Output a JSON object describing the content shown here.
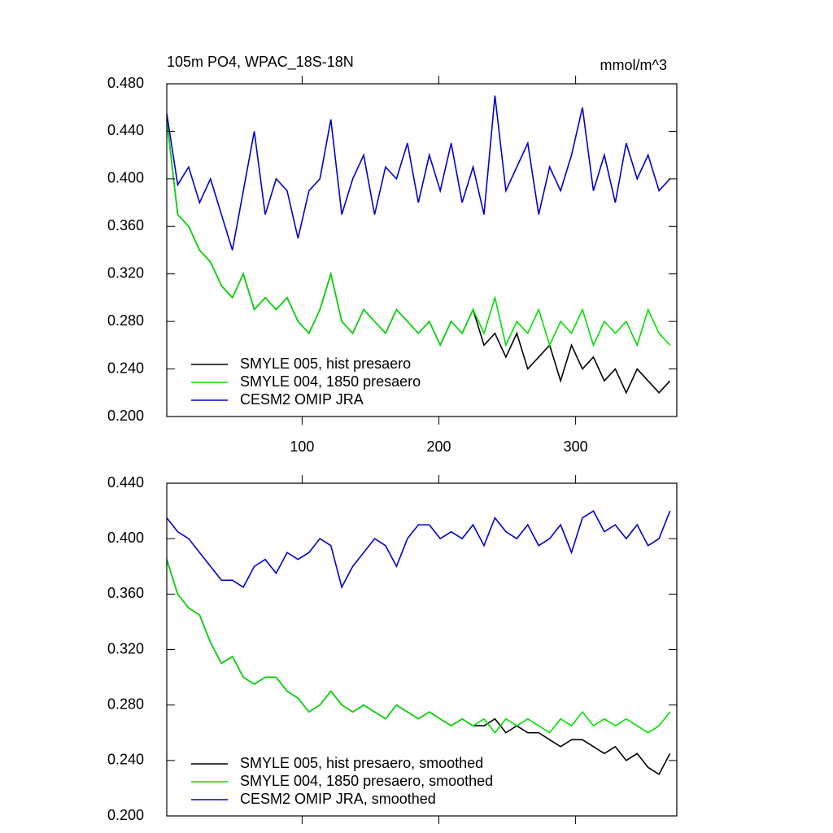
{
  "chart_data": [
    {
      "type": "line",
      "title": "105m PO4, WPAC_18S-18N",
      "units": "mmol/m^3",
      "x": [
        1,
        9,
        17,
        25,
        33,
        41,
        49,
        57,
        65,
        73,
        81,
        89,
        97,
        105,
        113,
        121,
        129,
        137,
        145,
        153,
        161,
        169,
        177,
        185,
        193,
        201,
        209,
        217,
        225,
        233,
        241,
        249,
        257,
        265,
        273,
        281,
        289,
        297,
        305,
        313,
        321,
        329,
        337,
        345,
        353,
        361,
        369
      ],
      "xlim": [
        1,
        374
      ],
      "xticks": [
        100,
        200,
        300
      ],
      "ylim": [
        0.2,
        0.48
      ],
      "yticks": [
        {
          "value": 0.2,
          "label": "0.200"
        },
        {
          "value": 0.24,
          "label": "0.240"
        },
        {
          "value": 0.28,
          "label": "0.280"
        },
        {
          "value": 0.32,
          "label": "0.320"
        },
        {
          "value": 0.36,
          "label": "0.360"
        },
        {
          "value": 0.4,
          "label": "0.400"
        },
        {
          "value": 0.44,
          "label": "0.440"
        },
        {
          "value": 0.48,
          "label": "0.480"
        }
      ],
      "legend": "lower left",
      "series": [
        {
          "name": "SMYLE 005, hist presaero",
          "color": "#000000",
          "values": [
            0.45,
            0.37,
            0.36,
            0.34,
            0.33,
            0.31,
            0.3,
            0.32,
            0.29,
            0.3,
            0.29,
            0.3,
            0.28,
            0.27,
            0.29,
            0.32,
            0.28,
            0.27,
            0.29,
            0.28,
            0.27,
            0.29,
            0.28,
            0.27,
            0.28,
            0.26,
            0.28,
            0.27,
            0.29,
            0.26,
            0.27,
            0.25,
            0.27,
            0.24,
            0.25,
            0.26,
            0.23,
            0.26,
            0.24,
            0.25,
            0.23,
            0.24,
            0.22,
            0.24,
            0.23,
            0.22,
            0.23
          ]
        },
        {
          "name": "SMYLE 004, 1850 presaero",
          "color": "#00e000",
          "values": [
            0.45,
            0.37,
            0.36,
            0.34,
            0.33,
            0.31,
            0.3,
            0.32,
            0.29,
            0.3,
            0.29,
            0.3,
            0.28,
            0.27,
            0.29,
            0.32,
            0.28,
            0.27,
            0.29,
            0.28,
            0.27,
            0.29,
            0.28,
            0.27,
            0.28,
            0.26,
            0.28,
            0.27,
            0.29,
            0.27,
            0.3,
            0.26,
            0.28,
            0.27,
            0.29,
            0.26,
            0.28,
            0.27,
            0.29,
            0.26,
            0.28,
            0.27,
            0.28,
            0.26,
            0.29,
            0.27,
            0.26
          ]
        },
        {
          "name": "CESM2 OMIP JRA",
          "color": "#0000d0",
          "values": [
            0.455,
            0.395,
            0.41,
            0.38,
            0.4,
            0.37,
            0.34,
            0.39,
            0.44,
            0.37,
            0.4,
            0.39,
            0.35,
            0.39,
            0.4,
            0.45,
            0.37,
            0.4,
            0.42,
            0.37,
            0.41,
            0.4,
            0.43,
            0.38,
            0.42,
            0.39,
            0.43,
            0.38,
            0.41,
            0.37,
            0.47,
            0.39,
            0.41,
            0.43,
            0.37,
            0.41,
            0.39,
            0.42,
            0.46,
            0.39,
            0.42,
            0.38,
            0.43,
            0.4,
            0.42,
            0.39,
            0.4
          ]
        }
      ]
    },
    {
      "type": "line",
      "x": [
        1,
        9,
        17,
        25,
        33,
        41,
        49,
        57,
        65,
        73,
        81,
        89,
        97,
        105,
        113,
        121,
        129,
        137,
        145,
        153,
        161,
        169,
        177,
        185,
        193,
        201,
        209,
        217,
        225,
        233,
        241,
        249,
        257,
        265,
        273,
        281,
        289,
        297,
        305,
        313,
        321,
        329,
        337,
        345,
        353,
        361,
        369
      ],
      "xlim": [
        1,
        374
      ],
      "xticks": [
        100,
        200,
        300
      ],
      "ylim": [
        0.2,
        0.44
      ],
      "yticks": [
        {
          "value": 0.2,
          "label": "0.200"
        },
        {
          "value": 0.24,
          "label": "0.240"
        },
        {
          "value": 0.28,
          "label": "0.280"
        },
        {
          "value": 0.32,
          "label": "0.320"
        },
        {
          "value": 0.36,
          "label": "0.360"
        },
        {
          "value": 0.4,
          "label": "0.400"
        },
        {
          "value": 0.44,
          "label": "0.440"
        }
      ],
      "legend": "lower left",
      "series": [
        {
          "name": "SMYLE 005, hist presaero, smoothed",
          "color": "#000000",
          "values": [
            0.385,
            0.36,
            0.35,
            0.345,
            0.325,
            0.31,
            0.315,
            0.3,
            0.295,
            0.3,
            0.3,
            0.29,
            0.285,
            0.275,
            0.28,
            0.29,
            0.28,
            0.275,
            0.28,
            0.275,
            0.27,
            0.28,
            0.275,
            0.27,
            0.275,
            0.27,
            0.265,
            0.27,
            0.265,
            0.265,
            0.27,
            0.26,
            0.265,
            0.26,
            0.26,
            0.255,
            0.25,
            0.255,
            0.255,
            0.25,
            0.245,
            0.25,
            0.24,
            0.245,
            0.235,
            0.23,
            0.245
          ]
        },
        {
          "name": "SMYLE 004, 1850 presaero, smoothed",
          "color": "#00e000",
          "values": [
            0.385,
            0.36,
            0.35,
            0.345,
            0.325,
            0.31,
            0.315,
            0.3,
            0.295,
            0.3,
            0.3,
            0.29,
            0.285,
            0.275,
            0.28,
            0.29,
            0.28,
            0.275,
            0.28,
            0.275,
            0.27,
            0.28,
            0.275,
            0.27,
            0.275,
            0.27,
            0.265,
            0.27,
            0.265,
            0.27,
            0.26,
            0.27,
            0.265,
            0.27,
            0.265,
            0.26,
            0.27,
            0.265,
            0.275,
            0.265,
            0.27,
            0.265,
            0.27,
            0.265,
            0.26,
            0.265,
            0.275
          ]
        },
        {
          "name": "CESM2 OMIP JRA, smoothed",
          "color": "#0000d0",
          "values": [
            0.415,
            0.405,
            0.4,
            0.39,
            0.38,
            0.37,
            0.37,
            0.365,
            0.38,
            0.385,
            0.375,
            0.39,
            0.385,
            0.39,
            0.4,
            0.395,
            0.365,
            0.38,
            0.39,
            0.4,
            0.395,
            0.38,
            0.4,
            0.41,
            0.41,
            0.4,
            0.405,
            0.4,
            0.41,
            0.395,
            0.415,
            0.405,
            0.4,
            0.41,
            0.395,
            0.4,
            0.41,
            0.39,
            0.415,
            0.42,
            0.405,
            0.41,
            0.4,
            0.41,
            0.395,
            0.4,
            0.42
          ]
        }
      ]
    }
  ]
}
